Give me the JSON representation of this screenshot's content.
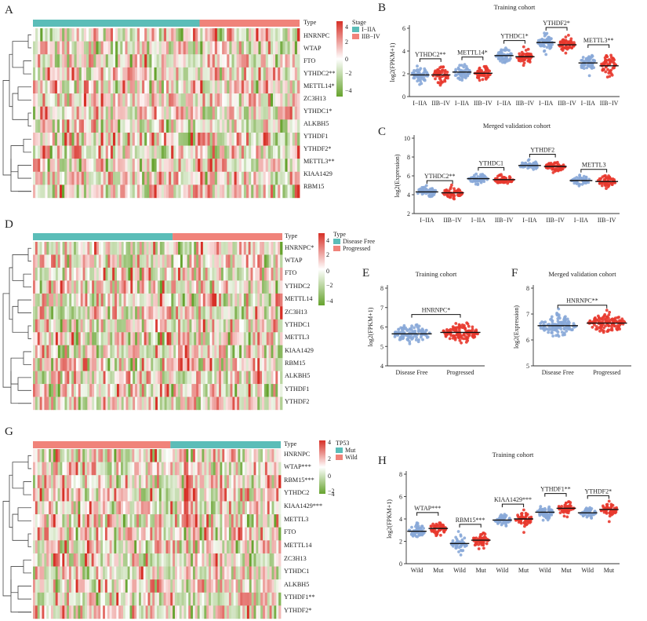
{
  "figure": {
    "panel_letters": [
      "A",
      "B",
      "C",
      "D",
      "E",
      "F",
      "G",
      "H"
    ],
    "colors": {
      "teal": "#5BBDB8",
      "salmon": "#F0837A",
      "heat_high": "#D73027",
      "heat_mid": "#FFFFFF",
      "heat_low": "#66A32E",
      "blue_pts": "#88A9D8",
      "red_pts": "#E8382D",
      "mean_line": "#111111",
      "axis": "#333333"
    }
  },
  "heatmaps": [
    {
      "id": "A",
      "letter": "A",
      "type_label": "Type",
      "legend_title": "Stage",
      "groups": [
        "I−IIA",
        "IIB−IV"
      ],
      "group_colors": [
        "#5BBDB8",
        "#F0837A"
      ],
      "group_split_fraction": 0.625,
      "scale_ticks": [
        "4",
        "2",
        "0",
        "−2",
        "−4"
      ],
      "genes": [
        "HNRNPC",
        "WTAP",
        "FTO",
        "YTHDC2**",
        "METTL14*",
        "ZC3H13",
        "YTHDC1*",
        "ALKBH5",
        "YTHDF1",
        "YTHDF2*",
        "METTL3**",
        "KIAA1429",
        "RBM15"
      ]
    },
    {
      "id": "D",
      "letter": "D",
      "type_label": "Type",
      "legend_title": "Type",
      "groups": [
        "Disease Free",
        "Progressed"
      ],
      "group_colors": [
        "#5BBDB8",
        "#F0837A"
      ],
      "group_split_fraction": 0.56,
      "scale_ticks": [
        "4",
        "2",
        "0",
        "−2",
        "−4"
      ],
      "genes": [
        "HNRNPC*",
        "WTAP",
        "FTO",
        "YTHDC2",
        "METTL14",
        "ZC3H13",
        "YTHDC1",
        "METTL3",
        "KIAA1429",
        "RBM15",
        "ALKBH5",
        "YTHDF1",
        "YTHDF2"
      ]
    },
    {
      "id": "G",
      "letter": "G",
      "type_label": "Type",
      "legend_title": "TP53",
      "groups": [
        "Mut",
        "Wild"
      ],
      "group_colors": [
        "#5BBDB8",
        "#F0837A"
      ],
      "group_split_fraction": 0.555,
      "scale_ticks": [
        "4",
        "2",
        "0",
        "−2",
        "−4"
      ],
      "genes": [
        "HNRNPC",
        "WTAP***",
        "RBM15***",
        "YTHDC2",
        "KIAA1429***",
        "METTL3",
        "FTO",
        "METTL14",
        "ZC3H13",
        "YTHDC1",
        "ALKBH5",
        "YTHDF1**",
        "YTHDF2*"
      ]
    }
  ],
  "chart_data": [
    {
      "id": "B",
      "letter": "B",
      "type": "scatter",
      "title": "Training cohort",
      "ylabel": "log2(FPKM+1)",
      "ylim": [
        0,
        6
      ],
      "yticks": [
        0,
        2,
        4,
        6
      ],
      "xtick_labels": [
        "I−IIA",
        "IIB−IV",
        "I−IIA",
        "IIB−IV",
        "I−IIA",
        "IIB−IV",
        "I−IIA",
        "IIB−IV",
        "I−IIA",
        "IIB−IV"
      ],
      "groups": [
        {
          "gene": "YTHDC2**",
          "means": [
            1.9,
            1.9
          ],
          "spread": 0.6
        },
        {
          "gene": "METTL14*",
          "means": [
            2.15,
            2.05
          ],
          "spread": 0.55
        },
        {
          "gene": "YTHDC1*",
          "means": [
            3.6,
            3.5
          ],
          "spread": 0.55
        },
        {
          "gene": "YTHDF2*",
          "means": [
            4.75,
            4.55
          ],
          "spread": 0.55
        },
        {
          "gene": "METTL3**",
          "means": [
            2.95,
            2.7
          ],
          "spread": 0.7
        }
      ]
    },
    {
      "id": "C",
      "letter": "C",
      "type": "scatter",
      "title": "Merged validation cohort",
      "ylabel": "log2(Expression)",
      "ylim": [
        2,
        10
      ],
      "yticks": [
        2,
        4,
        6,
        8,
        10
      ],
      "xtick_labels": [
        "I−IIA",
        "IIB−IV",
        "I−IIA",
        "IIB−IV",
        "I−IIA",
        "IIB−IV",
        "I−IIA",
        "IIB−IV"
      ],
      "groups": [
        {
          "gene": "YTHDC2**",
          "means": [
            4.3,
            4.2
          ],
          "spread": 0.45
        },
        {
          "gene": "YTHDC1",
          "means": [
            5.7,
            5.6
          ],
          "spread": 0.45
        },
        {
          "gene": "YTHDF2",
          "means": [
            7.1,
            7.0
          ],
          "spread": 0.45
        },
        {
          "gene": "METTL3",
          "means": [
            5.5,
            5.4
          ],
          "spread": 0.45
        }
      ]
    },
    {
      "id": "E",
      "letter": "E",
      "type": "scatter",
      "title": "Training cohort",
      "ylabel": "log2(FPKM+1)",
      "ylim": [
        4,
        8
      ],
      "yticks": [
        4,
        5,
        6,
        7,
        8
      ],
      "xtick_labels": [
        "Disease Free",
        "Progressed"
      ],
      "groups": [
        {
          "gene": "HNRNPC*",
          "means": [
            5.65,
            5.72
          ],
          "spread": 0.4
        }
      ]
    },
    {
      "id": "F",
      "letter": "F",
      "type": "scatter",
      "title": "Merged validation cohort",
      "ylabel": "log2(Expression)",
      "ylim": [
        5,
        8
      ],
      "yticks": [
        5,
        6,
        7,
        8
      ],
      "xtick_labels": [
        "Disease Free",
        "Progressed"
      ],
      "groups": [
        {
          "gene": "HNRNPC**",
          "means": [
            6.55,
            6.65
          ],
          "spread": 0.3
        }
      ]
    },
    {
      "id": "H",
      "letter": "H",
      "type": "scatter",
      "title": "Training cohort",
      "ylabel": "log2(FPKM+1)",
      "ylim": [
        0,
        8
      ],
      "yticks": [
        0,
        2,
        4,
        6,
        8
      ],
      "xtick_labels": [
        "Wild",
        "Mut",
        "Wild",
        "Mut",
        "Wild",
        "Mut",
        "Wild",
        "Mut",
        "Wild",
        "Mut"
      ],
      "groups": [
        {
          "gene": "WTAP***",
          "means": [
            2.9,
            3.15
          ],
          "spread": 0.6
        },
        {
          "gene": "RBM15***",
          "means": [
            1.8,
            2.1
          ],
          "spread": 0.6
        },
        {
          "gene": "KIAA1429***",
          "means": [
            3.9,
            4.0
          ],
          "spread": 0.55
        },
        {
          "gene": "YTHDF1**",
          "means": [
            4.6,
            4.95
          ],
          "spread": 0.55
        },
        {
          "gene": "YTHDF2*",
          "means": [
            4.55,
            4.85
          ],
          "spread": 0.5
        }
      ]
    }
  ]
}
